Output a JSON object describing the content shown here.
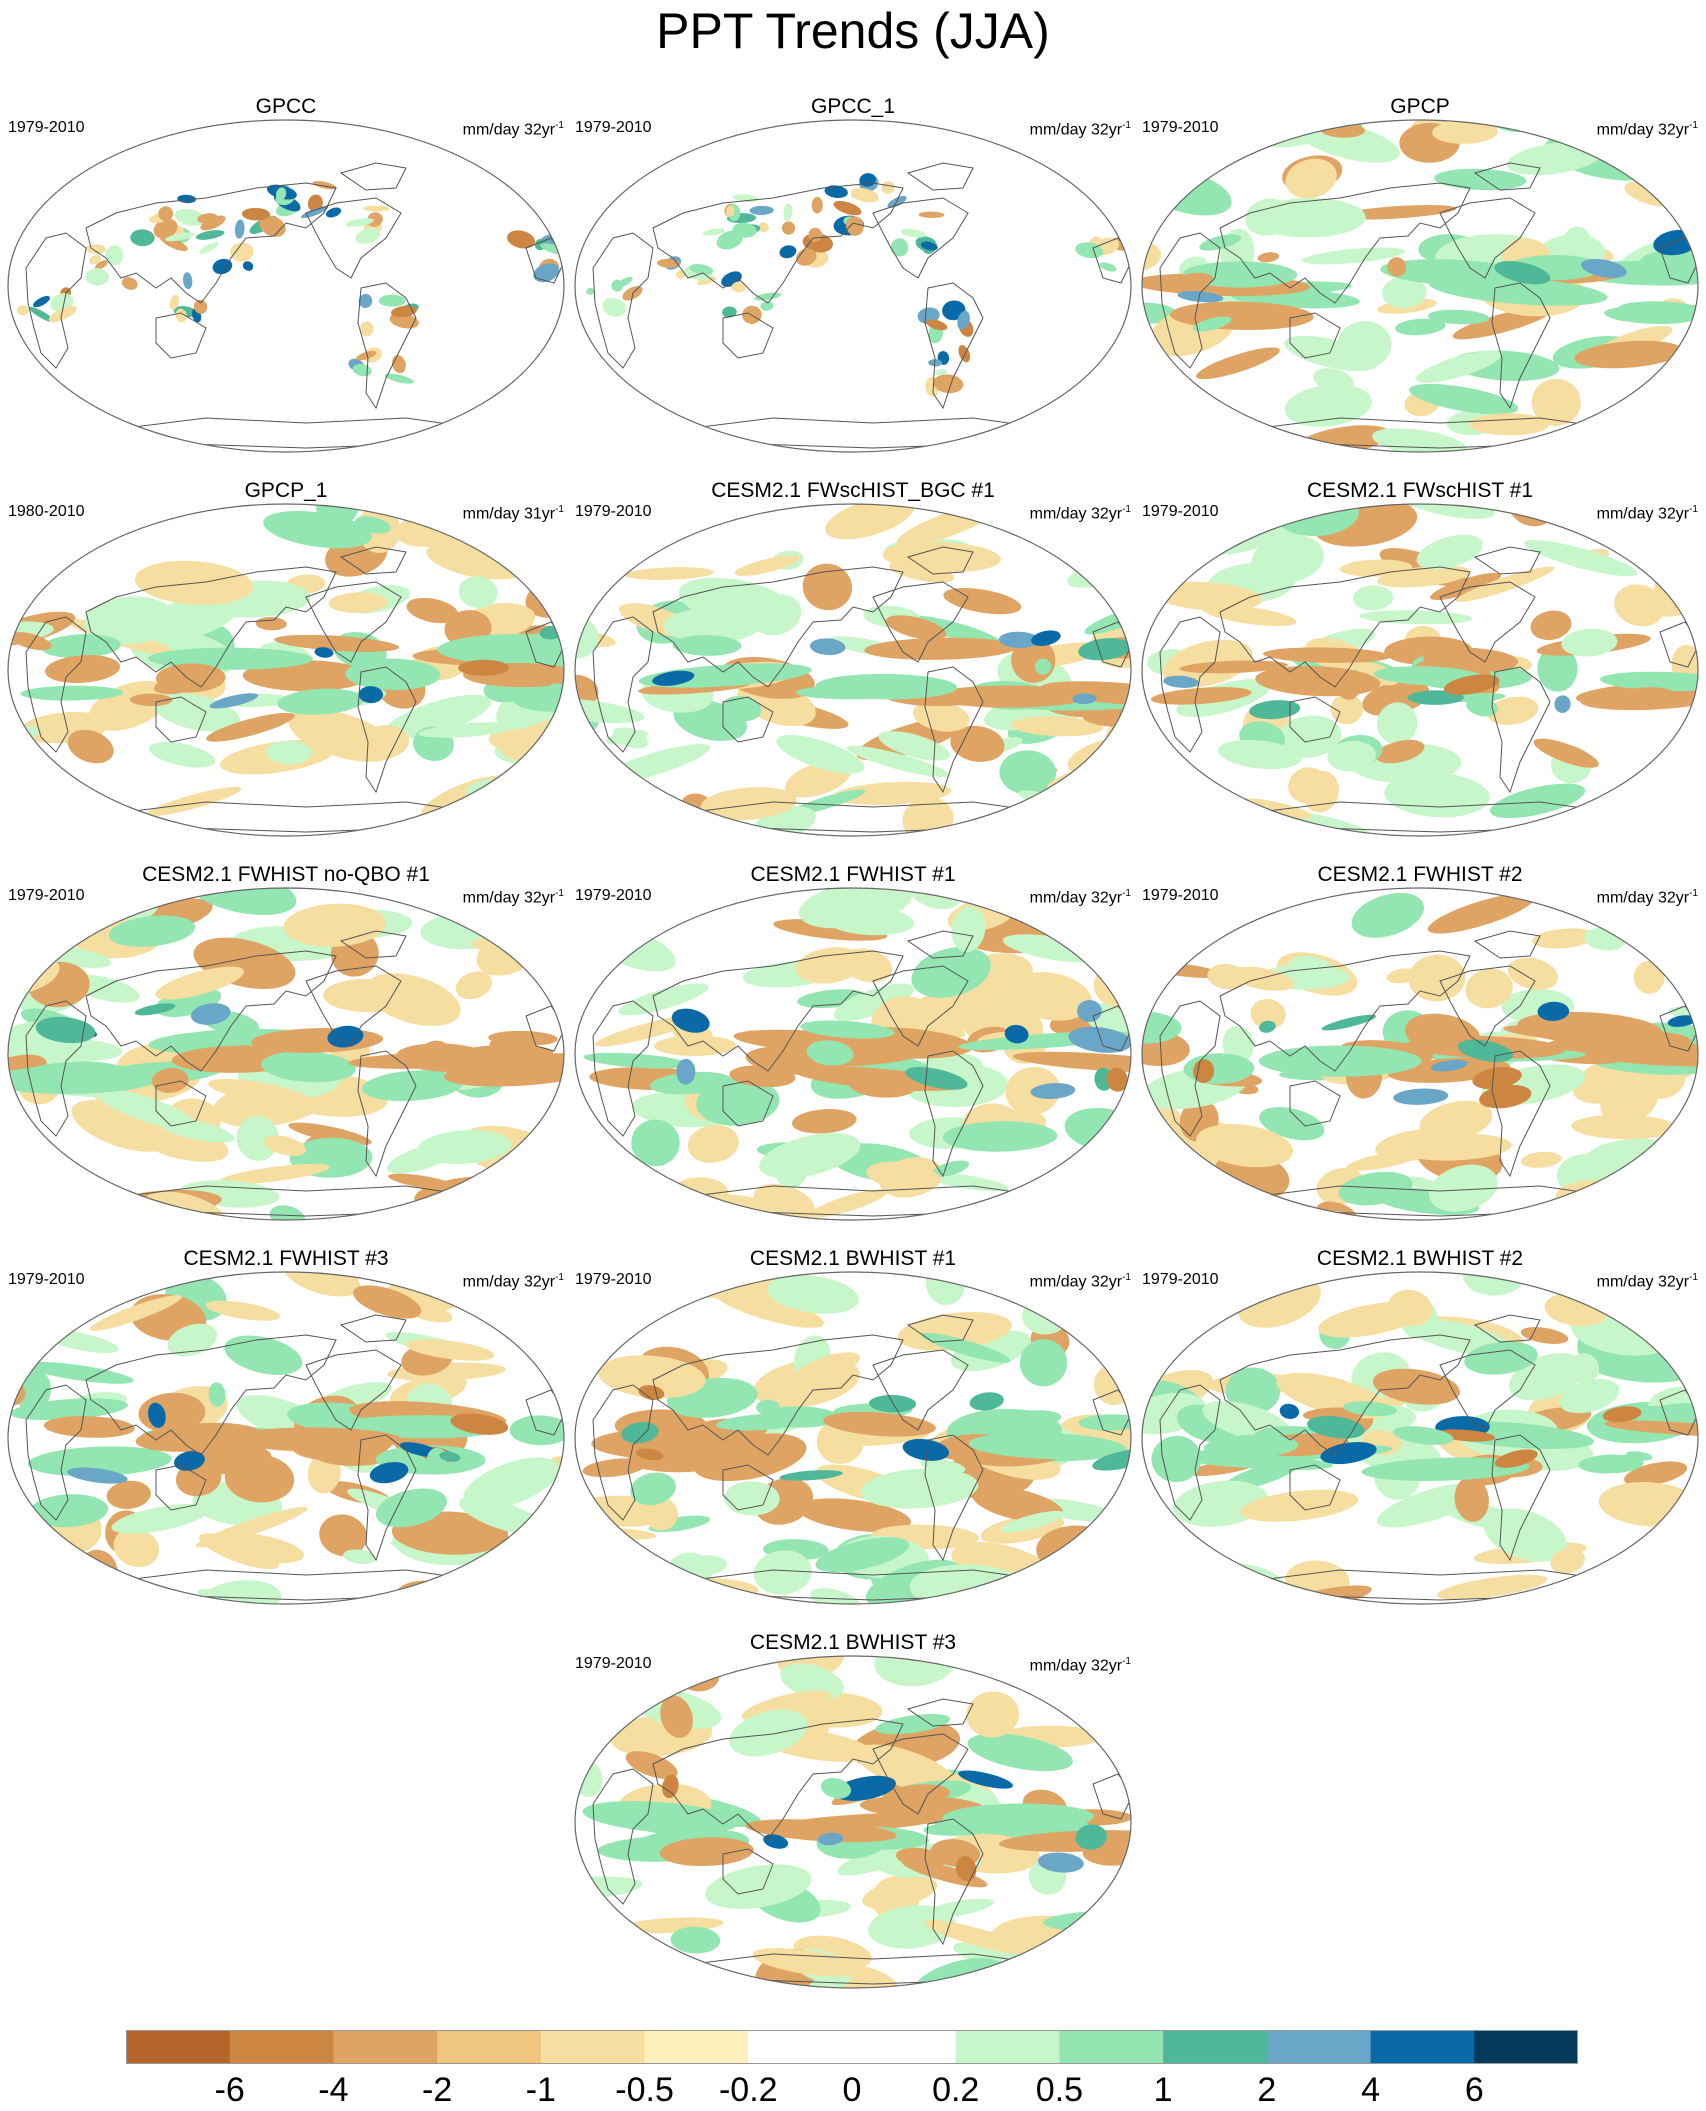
{
  "title": "PPT Trends (JJA)",
  "panels": [
    {
      "title": "GPCC",
      "period": "1979-2010",
      "units": "mm/day 32yr",
      "units_exp": "-1",
      "kind": "land"
    },
    {
      "title": "GPCC_1",
      "period": "1979-2010",
      "units": "mm/day 32yr",
      "units_exp": "-1",
      "kind": "land"
    },
    {
      "title": "GPCP",
      "period": "1979-2010",
      "units": "mm/day 32yr",
      "units_exp": "-1",
      "kind": "global"
    },
    {
      "title": "GPCP_1",
      "period": "1980-2010",
      "units": "mm/day 31yr",
      "units_exp": "-1",
      "kind": "global"
    },
    {
      "title": "CESM2.1 FWscHIST_BGC #1",
      "period": "1979-2010",
      "units": "mm/day 32yr",
      "units_exp": "-1",
      "kind": "global"
    },
    {
      "title": "CESM2.1 FWscHIST #1",
      "period": "1979-2010",
      "units": "mm/day 32yr",
      "units_exp": "-1",
      "kind": "global"
    },
    {
      "title": "CESM2.1 FWHIST no-QBO #1",
      "period": "1979-2010",
      "units": "mm/day 32yr",
      "units_exp": "-1",
      "kind": "global"
    },
    {
      "title": "CESM2.1 FWHIST #1",
      "period": "1979-2010",
      "units": "mm/day 32yr",
      "units_exp": "-1",
      "kind": "global"
    },
    {
      "title": "CESM2.1 FWHIST #2",
      "period": "1979-2010",
      "units": "mm/day 32yr",
      "units_exp": "-1",
      "kind": "global"
    },
    {
      "title": "CESM2.1 FWHIST #3",
      "period": "1979-2010",
      "units": "mm/day 32yr",
      "units_exp": "-1",
      "kind": "global"
    },
    {
      "title": "CESM2.1 BWHIST #1",
      "period": "1979-2010",
      "units": "mm/day 32yr",
      "units_exp": "-1",
      "kind": "global"
    },
    {
      "title": "CESM2.1 BWHIST #2",
      "period": "1979-2010",
      "units": "mm/day 32yr",
      "units_exp": "-1",
      "kind": "global"
    },
    {
      "title": "CESM2.1 BWHIST #3",
      "period": "1979-2010",
      "units": "mm/day 32yr",
      "units_exp": "-1",
      "kind": "global"
    }
  ],
  "colorbar": {
    "labels": [
      "-6",
      "-4",
      "-2",
      "-1",
      "-0.5",
      "-0.2",
      "0",
      "0.2",
      "0.5",
      "1",
      "2",
      "4",
      "6"
    ],
    "colors": [
      "#b5652a",
      "#cd8642",
      "#dfa463",
      "#f0c57f",
      "#f6dea0",
      "#fdf2bd",
      "#ffffff",
      "#ffffff",
      "#c8f6cb",
      "#93e6b1",
      "#4fb898",
      "#6aa6c8",
      "#0a6aa8",
      "#033a5a"
    ]
  },
  "palette": {
    "dry_strong": "#cd8642",
    "dry": "#dfa463",
    "dry_weak": "#f6dea0",
    "wet_weak": "#c8f6cb",
    "wet": "#93e6b1",
    "wet_strong": "#4fb898",
    "wet_blue": "#6aa6c8",
    "wet_deep": "#0a6aa8",
    "coast": "#555555",
    "frame": "#666666"
  }
}
